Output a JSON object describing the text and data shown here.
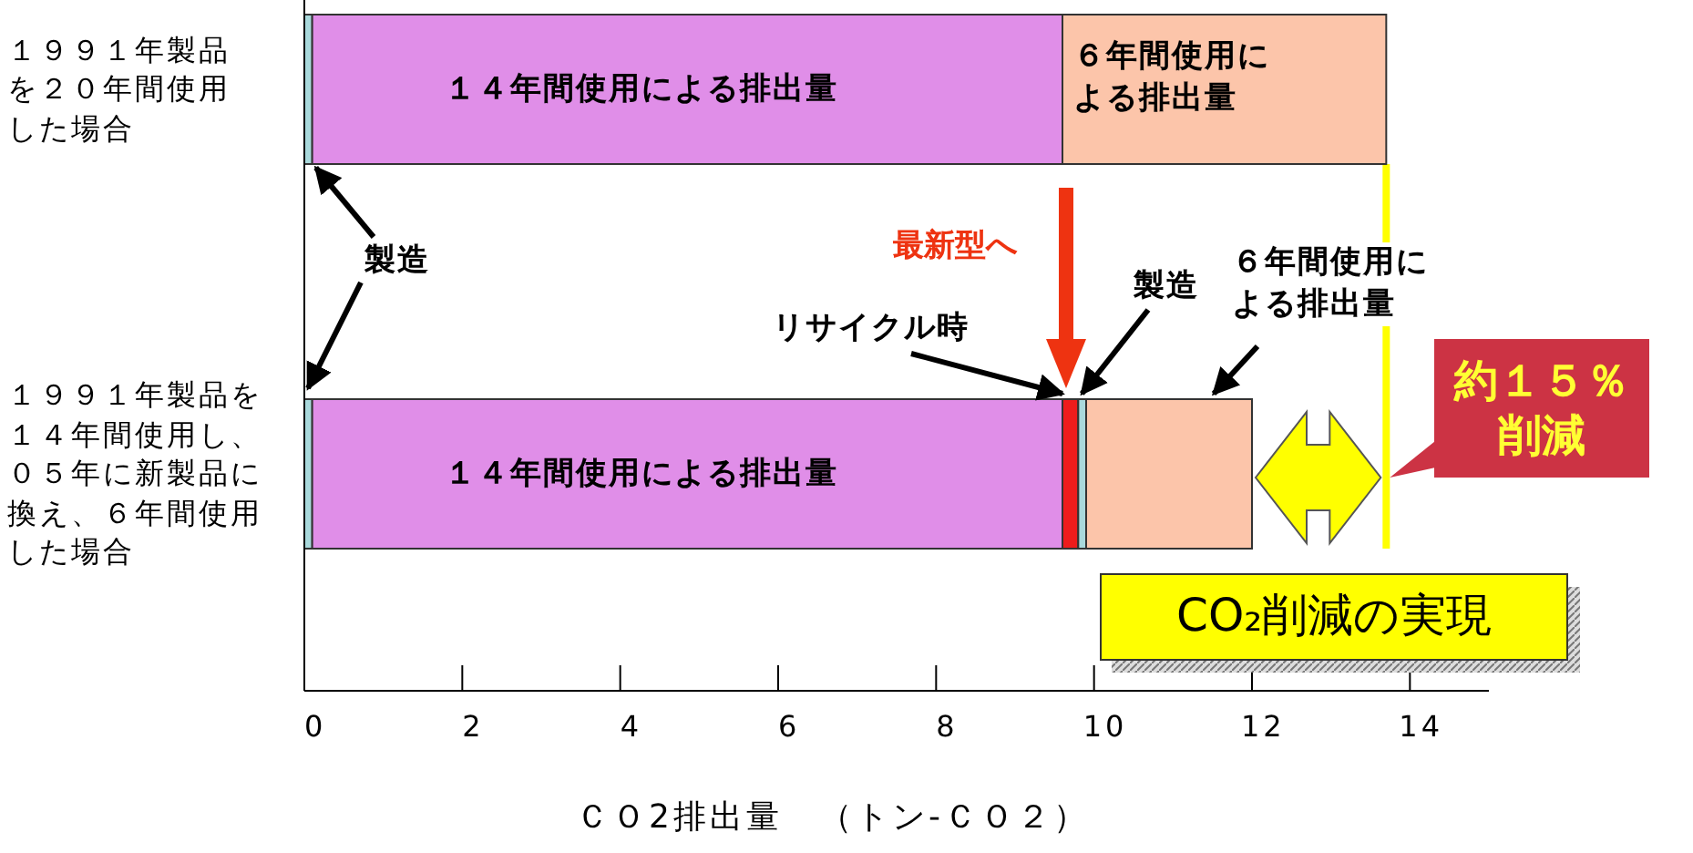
{
  "chart_data": {
    "type": "bar",
    "orientation": "horizontal",
    "stacked": true,
    "categories": [
      "１９９１年製品を２０年間使用した場合",
      "１９９１年製品を１４年間使用し、０５年に新製品に換え、６年間使用した場合"
    ],
    "series": [
      {
        "name": "製造",
        "color": "#a9d9dc",
        "values": [
          0.1,
          0.1
        ]
      },
      {
        "name": "１４年間使用による排出量",
        "color": "#e08ee8",
        "values": [
          9.5,
          9.5
        ]
      },
      {
        "name": "リサイクル時",
        "color": "#ee1c1c",
        "values": [
          null,
          0.2
        ]
      },
      {
        "name": "製造",
        "color": "#a9d9dc",
        "values": [
          null,
          0.1
        ]
      },
      {
        "name": "６年間使用による排出量",
        "color": "#fcc5aa",
        "values": [
          4.1,
          2.1
        ]
      }
    ],
    "xlabel": "ＣＯ2排出量　（トン-ＣＯ２）",
    "xlim": [
      0,
      15
    ],
    "xticks": [
      0,
      2,
      4,
      6,
      8,
      10,
      12,
      14
    ],
    "ref_lines": [
      {
        "axis": "x",
        "value": 13.7,
        "color": "#ffff00"
      }
    ],
    "annotations": [
      "最新型へ",
      "約１５％削減",
      "CO₂削減の実現"
    ]
  }
}
